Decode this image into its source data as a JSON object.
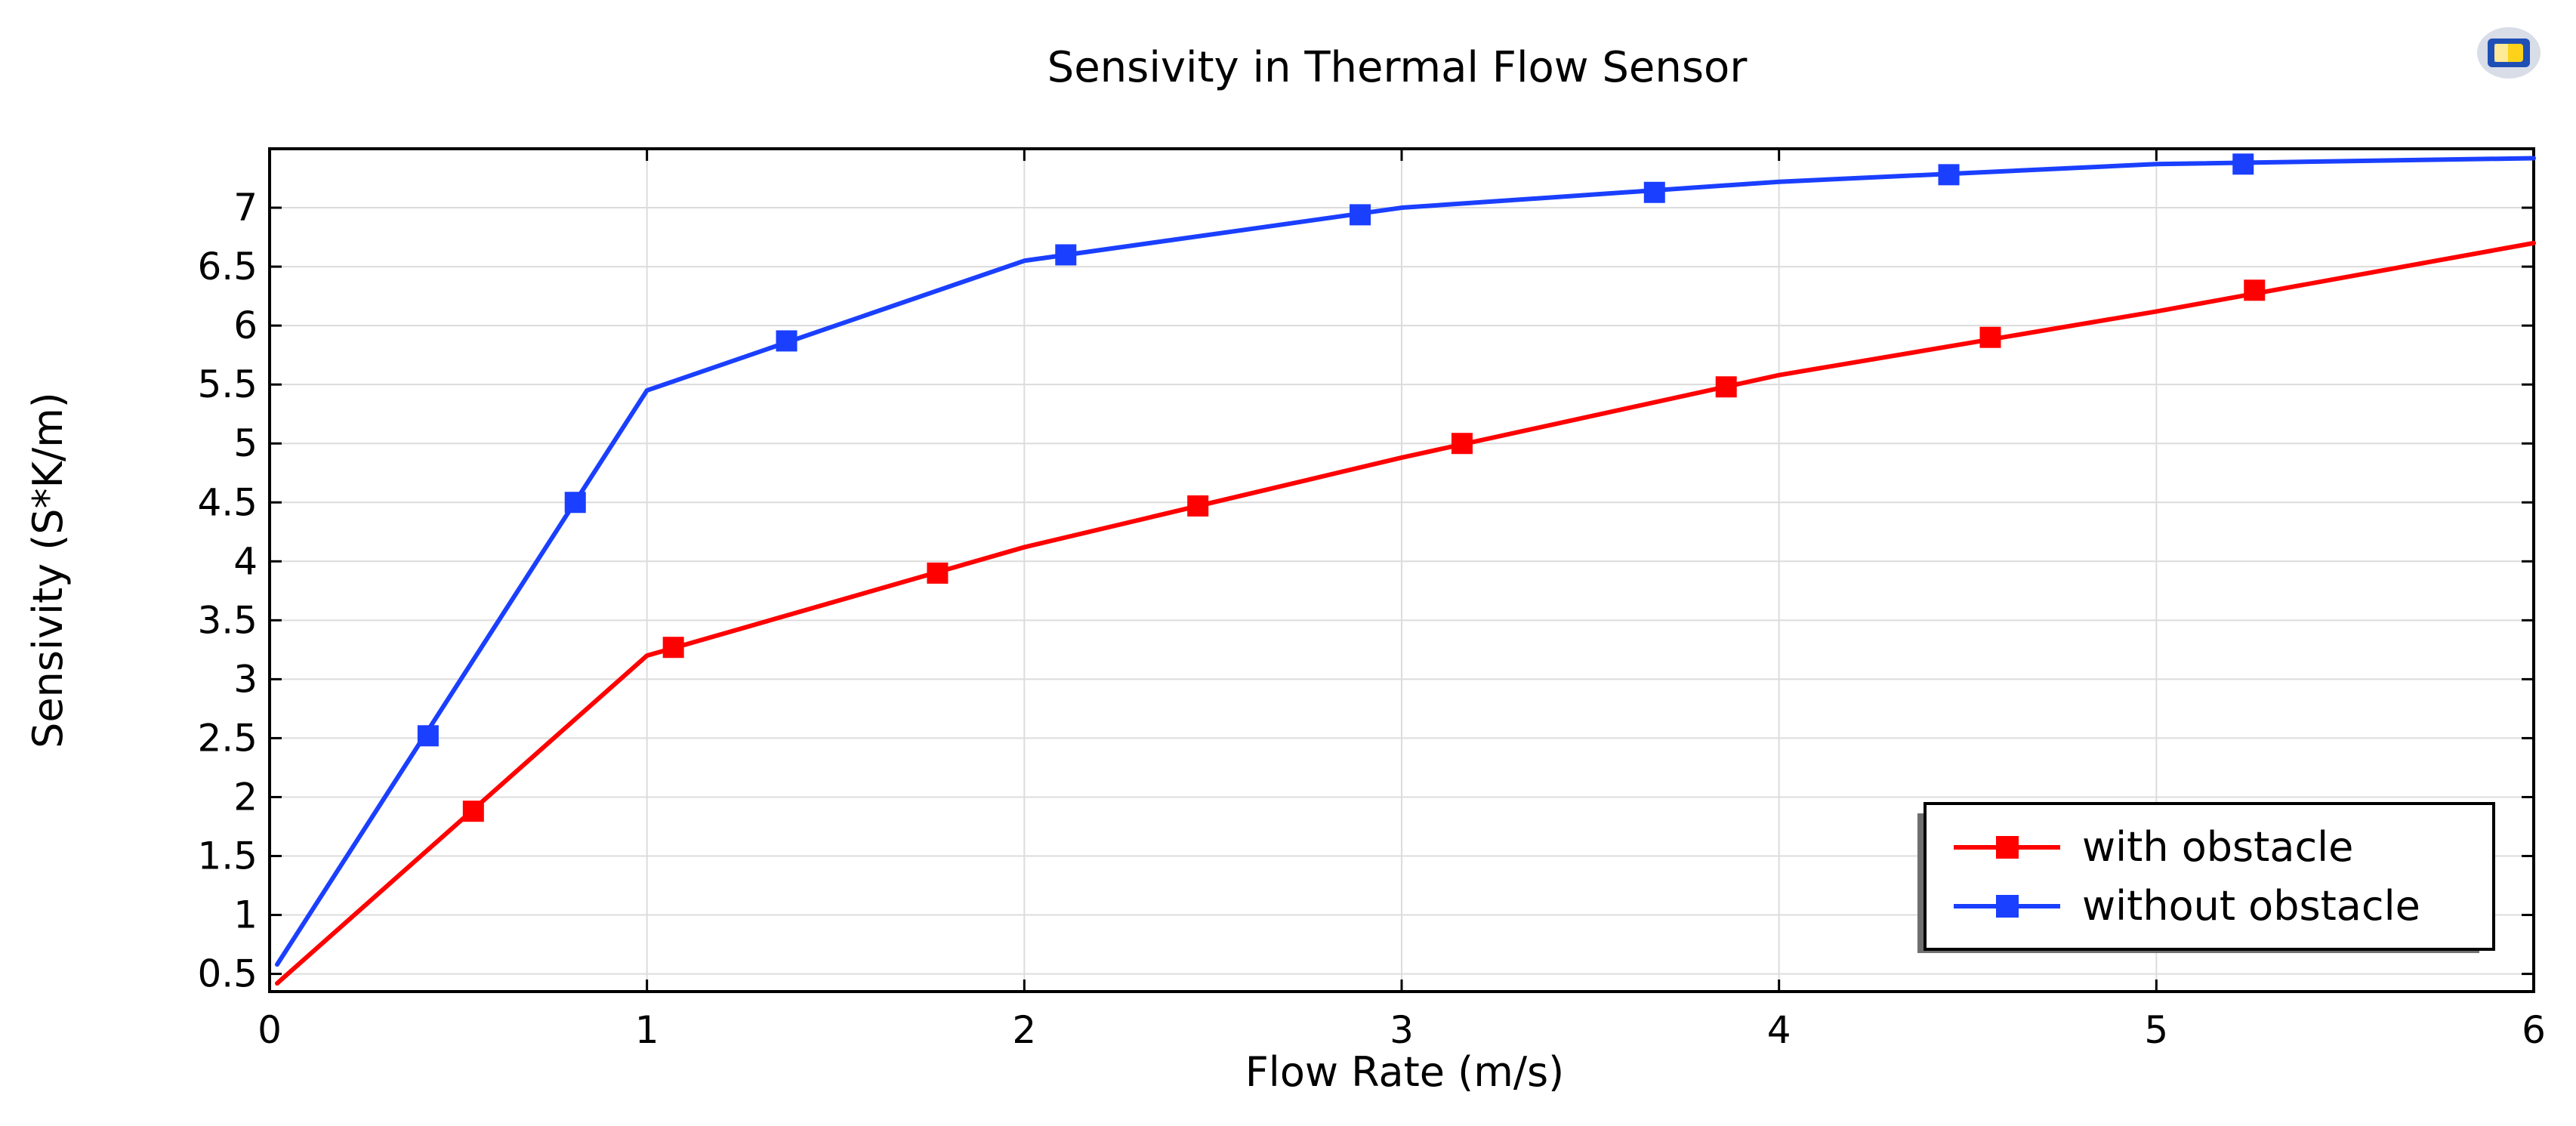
{
  "chart_data": {
    "type": "line",
    "title": "Sensivity in Thermal Flow Sensor",
    "xlabel": "Flow Rate (m/s)",
    "ylabel": "Sensivity (S*K/m)",
    "xlim": [
      0,
      6
    ],
    "ylim": [
      0.35,
      7.5
    ],
    "xticks": [
      0,
      1,
      2,
      3,
      4,
      5,
      6
    ],
    "xtick_labels": [
      "0",
      "1",
      "2",
      "3",
      "4",
      "5",
      "6"
    ],
    "yticks": [
      0.5,
      1,
      1.5,
      2,
      2.5,
      3,
      3.5,
      4,
      4.5,
      5,
      5.5,
      6,
      6.5,
      7
    ],
    "ytick_labels": [
      "0.5",
      "1",
      "1.5",
      "2",
      "2.5",
      "3",
      "3.5",
      "4",
      "4.5",
      "5",
      "5.5",
      "6",
      "6.5",
      "7"
    ],
    "grid": true,
    "legend_position": "bottom-right",
    "series": [
      {
        "name": "with obstacle",
        "color": "#ff0000",
        "line_x": [
          0.02,
          1.0,
          2.0,
          3.0,
          4.0,
          5.0,
          6.0
        ],
        "line_y": [
          0.42,
          3.2,
          4.12,
          4.88,
          5.58,
          6.12,
          6.7
        ],
        "marker_x": [
          0.54,
          1.07,
          1.77,
          2.46,
          3.16,
          3.86,
          4.56,
          5.26
        ],
        "marker_y": [
          1.88,
          3.27,
          3.9,
          4.47,
          5.0,
          5.48,
          5.9,
          6.3
        ]
      },
      {
        "name": "without obstacle",
        "color": "#1a3fff",
        "line_x": [
          0.02,
          1.0,
          2.0,
          3.0,
          4.0,
          5.0,
          6.0
        ],
        "line_y": [
          0.58,
          5.45,
          6.55,
          7.0,
          7.22,
          7.37,
          7.42
        ],
        "marker_x": [
          0.42,
          0.81,
          1.37,
          2.11,
          2.89,
          3.67,
          4.45,
          5.23
        ],
        "marker_y": [
          2.52,
          4.5,
          5.87,
          6.6,
          6.94,
          7.13,
          7.28,
          7.37
        ]
      }
    ]
  }
}
